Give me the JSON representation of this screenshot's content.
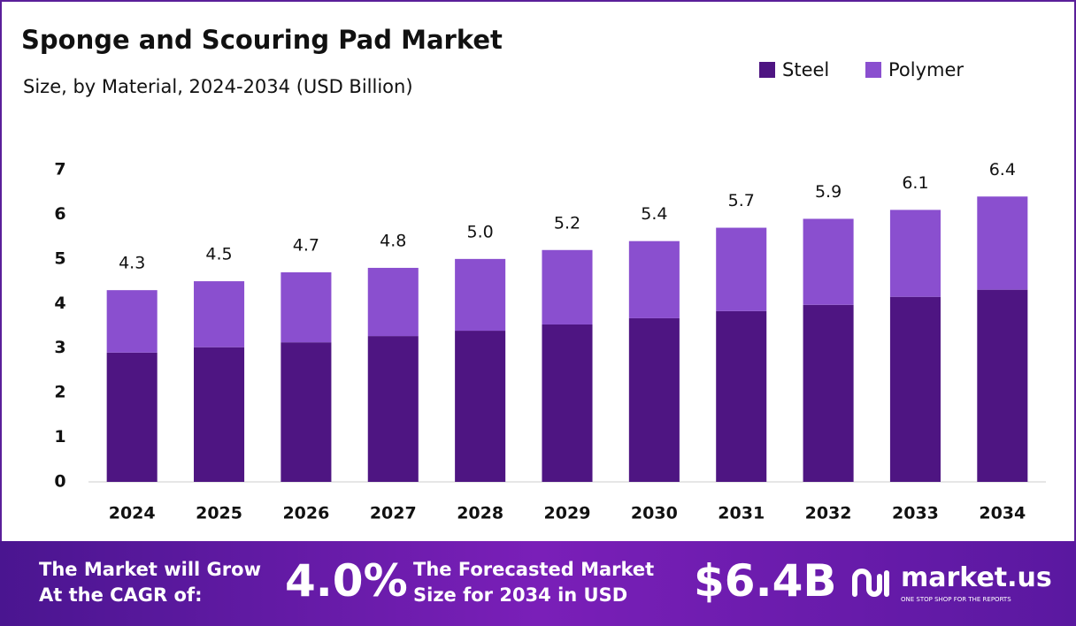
{
  "chart_data": {
    "type": "stacked_bar",
    "title": "Sponge and Scouring Pad Market",
    "subtitle": "Size, by Material, 2024-2034 (USD Billion)",
    "categories": [
      "2024",
      "2025",
      "2026",
      "2027",
      "2028",
      "2029",
      "2030",
      "2031",
      "2032",
      "2033",
      "2034"
    ],
    "series": [
      {
        "name": "Steel",
        "color": "#4e1582",
        "values": [
          2.9,
          3.02,
          3.13,
          3.27,
          3.39,
          3.53,
          3.67,
          3.83,
          3.97,
          4.15,
          4.31
        ]
      },
      {
        "name": "Polymer",
        "color": "#8a4fcf",
        "values": [
          1.4,
          1.48,
          1.57,
          1.53,
          1.61,
          1.67,
          1.73,
          1.87,
          1.93,
          1.95,
          2.09
        ]
      }
    ],
    "totals": [
      4.3,
      4.5,
      4.7,
      4.8,
      5.0,
      5.2,
      5.4,
      5.7,
      5.9,
      6.1,
      6.4
    ],
    "total_labels": [
      "4.3",
      "4.5",
      "4.7",
      "4.8",
      "5.0",
      "5.2",
      "5.4",
      "5.7",
      "5.9",
      "6.1",
      "6.4"
    ],
    "ylim": [
      0,
      7
    ],
    "yticks": [
      0,
      1,
      2,
      3,
      4,
      5,
      6,
      7
    ],
    "grid": false,
    "legend": "top-right"
  },
  "footer": {
    "cagr_text": "The Market will Grow At the CAGR of:",
    "cagr_value": "4.0%",
    "forecast_text": "The Forecasted Market Size for 2034 in USD",
    "forecast_value": "$6.4B",
    "brand": "market.us",
    "tagline": "ONE STOP SHOP FOR THE REPORTS"
  }
}
